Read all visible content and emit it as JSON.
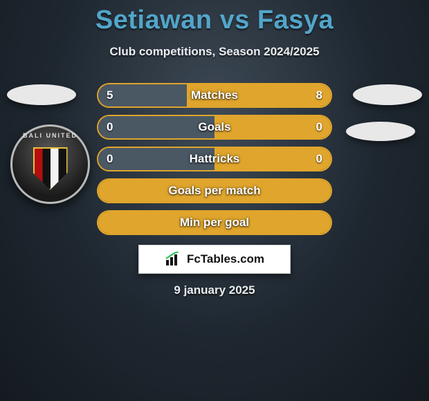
{
  "title": "Setiawan vs Fasya",
  "subtitle": "Club competitions, Season 2024/2025",
  "date": "9 january 2025",
  "logo_text": "FcTables.com",
  "colors": {
    "title": "#52a5c9",
    "text_light": "#e9edef",
    "bar_border": "#e0a52c",
    "left_color": "#4a5864",
    "right_color": "#e0a52c",
    "neutral_fill": "#e0a52c"
  },
  "badge": {
    "arc_text": "BALI UNITED"
  },
  "bars": [
    {
      "label": "Matches",
      "left": "5",
      "right": "8",
      "left_pct": 38,
      "right_pct": 62,
      "mode": "split"
    },
    {
      "label": "Goals",
      "left": "0",
      "right": "0",
      "left_pct": 50,
      "right_pct": 50,
      "mode": "split"
    },
    {
      "label": "Hattricks",
      "left": "0",
      "right": "0",
      "left_pct": 50,
      "right_pct": 50,
      "mode": "split"
    },
    {
      "label": "Goals per match",
      "left": "",
      "right": "",
      "left_pct": 0,
      "right_pct": 0,
      "mode": "full"
    },
    {
      "label": "Min per goal",
      "left": "",
      "right": "",
      "left_pct": 0,
      "right_pct": 0,
      "mode": "full"
    }
  ]
}
